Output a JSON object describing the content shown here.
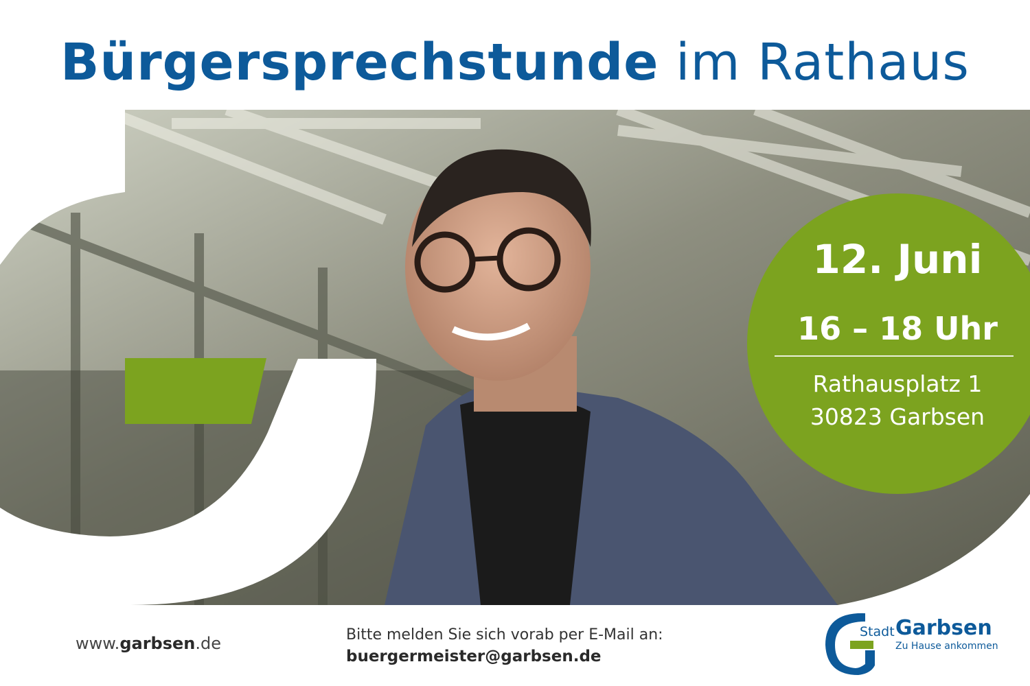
{
  "headline": {
    "bold": "Bürgersprechstunde",
    "light": "im Rathaus"
  },
  "event": {
    "date": "12. Juni",
    "time": "16 – 18 Uhr",
    "address_line1": "Rathausplatz 1",
    "address_line2": "30823 Garbsen"
  },
  "footer": {
    "website_prefix": "www.",
    "website_bold": "garbsen",
    "website_suffix": ".de",
    "note": "Bitte melden Sie sich vorab per E-Mail an:",
    "email": "buergermeister@garbsen.de"
  },
  "logo": {
    "stadt": "Stadt",
    "name": "Garbsen",
    "claim": "Zu Hause ankommen"
  },
  "colors": {
    "brand_blue": "#0d5a9a",
    "brand_green": "#7ca31f"
  }
}
